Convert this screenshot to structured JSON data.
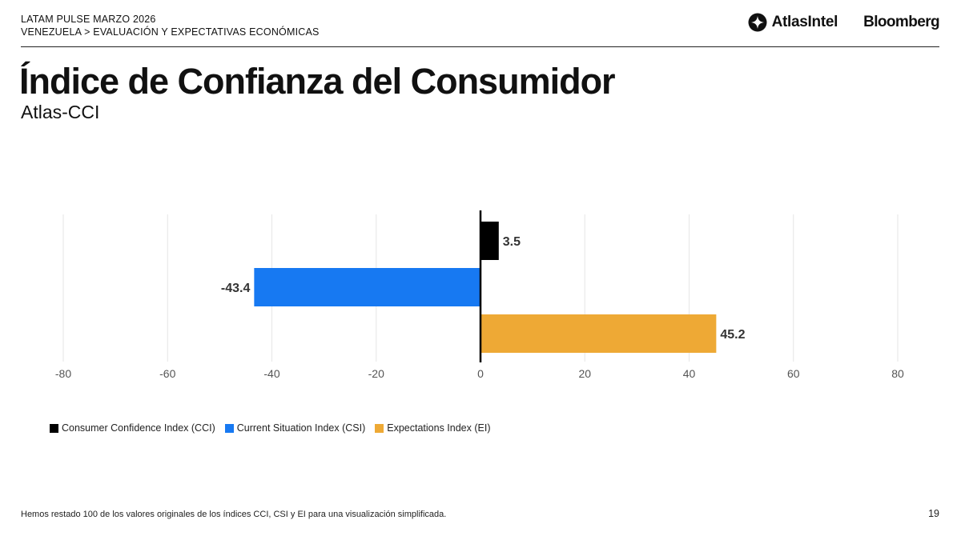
{
  "header": {
    "eyebrow_line1": "LATAM PULSE MARZO 2026",
    "eyebrow_line2": "VENEZUELA > EVALUACIÓN Y EXPECTATIVAS ECONÓMICAS",
    "logo_atlas": "AtlasIntel",
    "logo_bloomberg": "Bloomberg"
  },
  "title": "Índice de Confianza del Consumidor",
  "subtitle": "Atlas-CCI",
  "chart_data": {
    "type": "bar",
    "orientation": "horizontal",
    "xlim": [
      -80,
      80
    ],
    "xticks": [
      -80,
      -60,
      -40,
      -20,
      0,
      20,
      40,
      60,
      80
    ],
    "grid": true,
    "legend_position": "bottom-left",
    "series": [
      {
        "name": "Consumer Confidence Index (CCI)",
        "value": 3.5,
        "label": "3.5",
        "color": "#000000"
      },
      {
        "name": "Current Situation Index (CSI)",
        "value": -43.4,
        "label": "-43.4",
        "color": "#1779f2"
      },
      {
        "name": "Expectations Index (EI)",
        "value": 45.2,
        "label": "45.2",
        "color": "#eea935"
      }
    ]
  },
  "footnote": "Hemos restado 100 de los valores originales de los índices CCI, CSI y EI para una visualización simplificada.",
  "page_number": "19"
}
